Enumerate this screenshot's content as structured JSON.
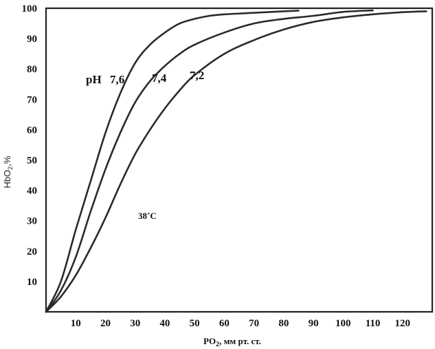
{
  "chart_data": {
    "type": "line",
    "xlabel_main": "PO",
    "xlabel_sub": "2",
    "xlabel_rest": ", мм рт. ст.",
    "ylabel_main": "HbO",
    "ylabel_sub": "2",
    "ylabel_rest": ",%",
    "annotation": "38˚C",
    "ph_prefix": "pH",
    "xlim": [
      0,
      130
    ],
    "ylim": [
      0,
      100
    ],
    "x_ticks": [
      "10",
      "20",
      "30",
      "40",
      "50",
      "60",
      "70",
      "80",
      "90",
      "100",
      "110",
      "120"
    ],
    "x_tick_values": [
      10,
      20,
      30,
      40,
      50,
      60,
      70,
      80,
      90,
      100,
      110,
      120
    ],
    "y_ticks": [
      "10",
      "20",
      "30",
      "40",
      "50",
      "60",
      "70",
      "80",
      "90",
      "100"
    ],
    "y_tick_values": [
      10,
      20,
      30,
      40,
      50,
      60,
      70,
      80,
      90,
      100
    ],
    "series": [
      {
        "name": "7,6",
        "label": "7,6",
        "x": [
          0,
          5,
          10,
          15,
          20,
          25,
          30,
          35,
          40,
          45,
          50,
          55,
          60,
          70,
          80,
          85
        ],
        "y": [
          0,
          10,
          27,
          43,
          59,
          72,
          82,
          88,
          92,
          95,
          96.5,
          97.5,
          98,
          98.5,
          99,
          99.2
        ]
      },
      {
        "name": "7,4",
        "label": "7,4",
        "x": [
          0,
          5,
          10,
          15,
          20,
          25,
          30,
          35,
          40,
          45,
          50,
          60,
          70,
          80,
          90,
          100,
          110
        ],
        "y": [
          0,
          7,
          18,
          33,
          47,
          59,
          69,
          76,
          81,
          85,
          88,
          92,
          95,
          96.5,
          97.5,
          98.8,
          99.3
        ]
      },
      {
        "name": "7,2",
        "label": "7,2",
        "x": [
          0,
          5,
          10,
          15,
          20,
          25,
          30,
          35,
          40,
          45,
          50,
          60,
          70,
          80,
          90,
          100,
          110,
          120,
          128
        ],
        "y": [
          0,
          5,
          12,
          21,
          31,
          42,
          52,
          60,
          67,
          73,
          78,
          85,
          89.5,
          93,
          95.5,
          97,
          98,
          98.7,
          99
        ]
      }
    ],
    "grid": false
  }
}
